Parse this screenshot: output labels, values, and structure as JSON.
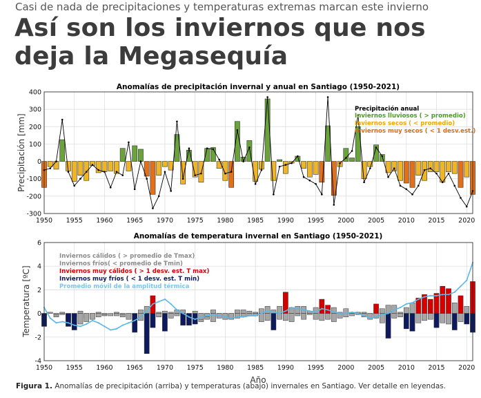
{
  "header": {
    "kicker": "Casi de nada de precipitaciones y temperaturas extremas marcan este invierno",
    "headline": "Así son los inviernos que nos deja la Megasequía"
  },
  "caption": {
    "label": "Figura 1.",
    "text": " Anomalías de precipitación (arriba) y temperaturas (abajo) invernales en Santiago. Ver detalle en leyendas."
  },
  "colors": {
    "wet": "#6aa33b",
    "dry": "#f0b428",
    "very_dry": "#e0701c",
    "warm": "#a6a6a6",
    "cold": "#a6a6a6",
    "very_warm": "#d40000",
    "very_cold": "#0d1a5c",
    "moving_avg": "#5bb7e6",
    "annual_line": "#000000"
  },
  "chart_data": [
    {
      "type": "bar",
      "title": "Anomalías de precipitación invernal y anual en Santiago (1950-2021)",
      "xlabel": "",
      "ylabel": "Precipitación [mm]",
      "ylim": [
        -300,
        400
      ],
      "yticks": [
        -300,
        -200,
        -100,
        0,
        100,
        200,
        300,
        400
      ],
      "xlim": [
        1950,
        2021
      ],
      "xticks": [
        1950,
        1955,
        1960,
        1965,
        1970,
        1975,
        1980,
        1985,
        1990,
        1995,
        2000,
        2005,
        2010,
        2015,
        2020
      ],
      "grid": true,
      "years": [
        1950,
        1951,
        1952,
        1953,
        1954,
        1955,
        1956,
        1957,
        1958,
        1959,
        1960,
        1961,
        1962,
        1963,
        1964,
        1965,
        1966,
        1967,
        1968,
        1969,
        1970,
        1971,
        1972,
        1973,
        1974,
        1975,
        1976,
        1977,
        1978,
        1979,
        1980,
        1981,
        1982,
        1983,
        1984,
        1985,
        1986,
        1987,
        1988,
        1989,
        1990,
        1991,
        1992,
        1993,
        1994,
        1995,
        1996,
        1997,
        1998,
        1999,
        2000,
        2001,
        2002,
        2003,
        2004,
        2005,
        2006,
        2007,
        2008,
        2009,
        2010,
        2011,
        2012,
        2013,
        2014,
        2015,
        2016,
        2017,
        2018,
        2019,
        2020,
        2021
      ],
      "values": [
        -150,
        -30,
        -45,
        125,
        -55,
        -115,
        -80,
        -110,
        -25,
        -65,
        -60,
        -55,
        -70,
        75,
        -55,
        90,
        70,
        -85,
        -190,
        -80,
        -30,
        -50,
        155,
        -130,
        65,
        -90,
        -120,
        75,
        80,
        -40,
        -110,
        -150,
        230,
        25,
        120,
        -115,
        -45,
        360,
        -110,
        10,
        -70,
        -10,
        30,
        -40,
        -90,
        -75,
        -120,
        205,
        -195,
        -30,
        75,
        20,
        200,
        -100,
        -30,
        95,
        40,
        -65,
        -55,
        -110,
        -125,
        -150,
        -80,
        -110,
        -60,
        -60,
        -120,
        -60,
        -70,
        -150,
        -90,
        -190
      ],
      "categories_per_bar": [
        "very_dry",
        "dry",
        "dry",
        "wet",
        "dry",
        "dry",
        "dry",
        "dry",
        "dry",
        "dry",
        "dry",
        "dry",
        "dry",
        "wet",
        "dry",
        "wet",
        "wet",
        "very_dry",
        "very_dry",
        "dry",
        "dry",
        "dry",
        "wet",
        "dry",
        "wet",
        "dry",
        "dry",
        "wet",
        "wet",
        "dry",
        "dry",
        "very_dry",
        "wet",
        "wet",
        "wet",
        "dry",
        "dry",
        "wet",
        "dry",
        "wet",
        "dry",
        "dry",
        "wet",
        "dry",
        "dry",
        "dry",
        "very_dry",
        "wet",
        "very_dry",
        "dry",
        "wet",
        "wet",
        "wet",
        "dry",
        "dry",
        "wet",
        "wet",
        "dry",
        "dry",
        "dry",
        "very_dry",
        "very_dry",
        "dry",
        "dry",
        "dry",
        "dry",
        "dry",
        "dry",
        "dry",
        "very_dry",
        "dry",
        "very_dry"
      ],
      "annual_series": {
        "name": "Precipitación anual",
        "values": [
          -50,
          -40,
          0,
          240,
          -60,
          -140,
          -100,
          -60,
          -20,
          -50,
          -60,
          -150,
          -60,
          -80,
          110,
          -160,
          0,
          -100,
          -270,
          -200,
          -60,
          -170,
          230,
          -100,
          75,
          -80,
          -70,
          75,
          70,
          10,
          -70,
          -60,
          180,
          0,
          80,
          -130,
          -50,
          370,
          -190,
          -30,
          -20,
          -10,
          30,
          -90,
          -110,
          -130,
          -190,
          370,
          -250,
          -10,
          20,
          60,
          265,
          -120,
          -40,
          80,
          30,
          -90,
          -40,
          -140,
          -160,
          -190,
          -140,
          -50,
          -40,
          -70,
          -120,
          -70,
          -140,
          -210,
          -260,
          -170
        ]
      },
      "legend": {
        "placement": "top-right",
        "entries": [
          "Precipitación anual",
          "Inviernos lluviosos ( > promedio)",
          "Inviernos secos ( < promedio)",
          "Inviernos muy secos ( < 1 desv.est.)"
        ]
      }
    },
    {
      "type": "bar",
      "title": "Anomalías de temperatura invernal en Santiago (1950-2021)",
      "xlabel": "Año",
      "ylabel": "Temperatura [ºC]",
      "ylim": [
        -4,
        6
      ],
      "yticks": [
        -4,
        -2,
        0,
        2,
        4,
        6
      ],
      "xlim": [
        1950,
        2021
      ],
      "xticks": [
        1950,
        1955,
        1960,
        1965,
        1970,
        1975,
        1980,
        1985,
        1990,
        1995,
        2000,
        2005,
        2010,
        2015,
        2020
      ],
      "grid": true,
      "years": [
        1950,
        1951,
        1952,
        1953,
        1954,
        1955,
        1956,
        1957,
        1958,
        1959,
        1960,
        1961,
        1962,
        1963,
        1964,
        1965,
        1966,
        1967,
        1968,
        1969,
        1970,
        1971,
        1972,
        1973,
        1974,
        1975,
        1976,
        1977,
        1978,
        1979,
        1980,
        1981,
        1982,
        1983,
        1984,
        1985,
        1986,
        1987,
        1988,
        1989,
        1990,
        1991,
        1992,
        1993,
        1994,
        1995,
        1996,
        1997,
        1998,
        1999,
        2000,
        2001,
        2002,
        2003,
        2004,
        2005,
        2006,
        2007,
        2008,
        2009,
        2010,
        2011,
        2012,
        2013,
        2014,
        2015,
        2016,
        2017,
        2018,
        2019,
        2020,
        2021
      ],
      "tmax": [
        -0.2,
        0.1,
        -0.3,
        0.1,
        -0.6,
        -0.3,
        0.2,
        -0.4,
        -0.1,
        0.1,
        -0.2,
        0.0,
        0.1,
        -0.3,
        -0.1,
        -0.1,
        0.3,
        0.6,
        1.5,
        0.1,
        0.2,
        0.1,
        0.3,
        0.3,
        -0.3,
        0.2,
        -0.7,
        -0.5,
        0.3,
        -0.3,
        -0.5,
        -0.5,
        0.3,
        0.3,
        0.2,
        0.1,
        0.4,
        0.6,
        0.3,
        0.6,
        1.8,
        0.5,
        0.6,
        0.6,
        0.2,
        0.5,
        1.2,
        0.7,
        0.5,
        0.1,
        0.4,
        0.1,
        0.1,
        0.1,
        -0.1,
        0.8,
        0.4,
        0.7,
        0.7,
        0.1,
        0.5,
        0.9,
        1.3,
        1.6,
        1.2,
        1.7,
        2.3,
        2.1,
        0.9,
        1.5,
        0.6,
        2.7
      ],
      "tmin": [
        -1.1,
        0.0,
        -0.1,
        -0.1,
        -1.1,
        -1.4,
        -0.9,
        -0.7,
        -0.5,
        -0.3,
        -0.1,
        -0.2,
        -0.2,
        -0.1,
        -0.5,
        -1.6,
        -0.6,
        -3.4,
        -1.2,
        -0.3,
        -1.5,
        -0.4,
        -0.2,
        -1.0,
        -1.0,
        -0.9,
        -0.5,
        -0.3,
        -0.7,
        -0.4,
        -0.5,
        -0.4,
        -0.4,
        -0.3,
        -0.2,
        -0.2,
        -0.7,
        -0.6,
        -1.4,
        -0.5,
        -0.6,
        -0.7,
        -0.2,
        -0.5,
        -0.1,
        -0.5,
        -0.6,
        -0.5,
        -0.7,
        -0.4,
        -0.3,
        -0.2,
        -0.1,
        -0.3,
        -0.5,
        -0.4,
        -0.8,
        -2.1,
        -0.4,
        -0.3,
        -1.3,
        -1.5,
        -0.8,
        -0.6,
        -0.5,
        -1.2,
        -0.8,
        -0.9,
        -1.4,
        -0.7,
        -0.9,
        -1.6
      ],
      "tmax_class": [
        "warm",
        "warm",
        "warm",
        "warm",
        "warm",
        "warm",
        "warm",
        "warm",
        "warm",
        "warm",
        "warm",
        "warm",
        "warm",
        "warm",
        "warm",
        "warm",
        "warm",
        "warm",
        "very_warm",
        "warm",
        "warm",
        "warm",
        "warm",
        "warm",
        "warm",
        "warm",
        "warm",
        "warm",
        "warm",
        "warm",
        "warm",
        "warm",
        "warm",
        "warm",
        "warm",
        "warm",
        "warm",
        "warm",
        "warm",
        "warm",
        "very_warm",
        "warm",
        "warm",
        "warm",
        "warm",
        "warm",
        "very_warm",
        "very_warm",
        "warm",
        "warm",
        "warm",
        "warm",
        "warm",
        "warm",
        "warm",
        "very_warm",
        "warm",
        "warm",
        "warm",
        "warm",
        "warm",
        "warm",
        "very_warm",
        "very_warm",
        "very_warm",
        "very_warm",
        "very_warm",
        "very_warm",
        "warm",
        "very_warm",
        "warm",
        "very_warm"
      ],
      "tmin_class": [
        "very_cold",
        "cold",
        "cold",
        "cold",
        "very_cold",
        "very_cold",
        "cold",
        "cold",
        "cold",
        "cold",
        "cold",
        "cold",
        "cold",
        "cold",
        "cold",
        "very_cold",
        "cold",
        "very_cold",
        "very_cold",
        "cold",
        "very_cold",
        "cold",
        "cold",
        "very_cold",
        "very_cold",
        "very_cold",
        "cold",
        "cold",
        "cold",
        "cold",
        "cold",
        "cold",
        "cold",
        "cold",
        "cold",
        "cold",
        "cold",
        "cold",
        "very_cold",
        "cold",
        "cold",
        "cold",
        "cold",
        "cold",
        "cold",
        "cold",
        "cold",
        "cold",
        "cold",
        "cold",
        "cold",
        "cold",
        "cold",
        "cold",
        "cold",
        "cold",
        "cold",
        "very_cold",
        "cold",
        "cold",
        "very_cold",
        "very_cold",
        "cold",
        "cold",
        "cold",
        "very_cold",
        "cold",
        "cold",
        "very_cold",
        "cold",
        "very_cold",
        "very_cold"
      ],
      "moving_average": {
        "name": "Promedio móvil de la amplitud térmica",
        "values": [
          0.5,
          -0.4,
          -0.8,
          -0.7,
          -0.8,
          -1.0,
          -1.1,
          -0.9,
          -0.6,
          -0.8,
          -1.1,
          -1.4,
          -1.3,
          -1.0,
          -0.8,
          -0.6,
          -0.3,
          0.2,
          0.8,
          1.0,
          1.2,
          0.8,
          0.3,
          0.0,
          -0.3,
          -0.5,
          -0.3,
          -0.2,
          -0.1,
          -0.2,
          -0.3,
          -0.4,
          -0.3,
          -0.3,
          -0.2,
          -0.2,
          0.0,
          0.2,
          0.1,
          0.0,
          0.2,
          0.5,
          0.4,
          0.3,
          0.2,
          0.1,
          0.4,
          0.3,
          0.1,
          0.0,
          0.0,
          0.1,
          0.0,
          -0.2,
          -0.4,
          -0.3,
          -0.1,
          0.0,
          0.3,
          0.5,
          0.8,
          0.9,
          1.2,
          1.4,
          1.5,
          1.5,
          1.6,
          1.6,
          1.8,
          2.3,
          2.8,
          4.3
        ]
      },
      "legend": {
        "placement": "top-left",
        "entries": [
          "Inviernos cálidos ( > promedio de Tmax)",
          "Inviernos fríos( < promedio de Tmin)",
          "Inviernos muy cálidos ( > 1 desv. est. T max)",
          "Inviernos muy fríos ( < 1 desv. est. T min)",
          "Promedio móvil de la amplitud térmica"
        ]
      }
    }
  ]
}
